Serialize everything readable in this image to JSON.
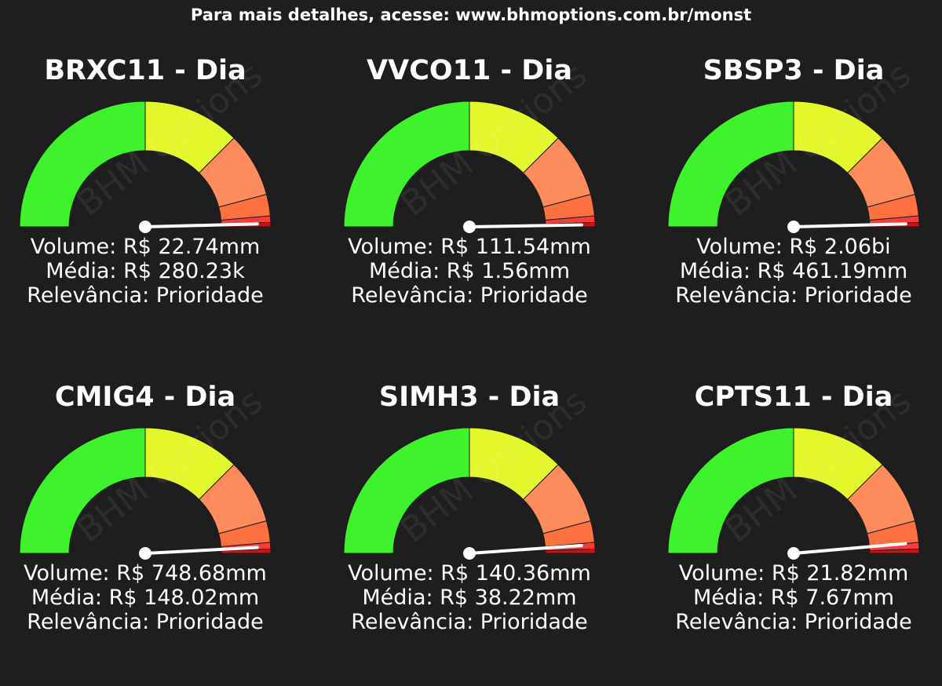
{
  "header": "Para mais detalhes, acesse: www.bhmoptions.com.br/monst",
  "watermark": "BHM Options",
  "colors": {
    "background": "#1e1e1e",
    "zones": [
      "#3ef22c",
      "#e4f72b",
      "#fd8c5c",
      "#fd7040",
      "#f93d3d",
      "#d40f0f"
    ],
    "needle": "#ffffff"
  },
  "chart_data": [
    {
      "type": "gauge",
      "title": "BRXC11 - Dia",
      "labels": {
        "volume": "Volume: R$ 22.74mm",
        "media": "Média: R$ 280.23k",
        "relevancia": "Relevância: Prioridade"
      },
      "volume": 22.74,
      "volume_unit": "mm",
      "media": 0.28023,
      "media_unit": "mm",
      "relevancia": "Prioridade",
      "zone_boundaries_deg": [
        0,
        90,
        135,
        165,
        175,
        178,
        180
      ],
      "needle_angle_deg": 178.5
    },
    {
      "type": "gauge",
      "title": "VVCO11 - Dia",
      "labels": {
        "volume": "Volume: R$ 111.54mm",
        "media": "Média: R$ 1.56mm",
        "relevancia": "Relevância: Prioridade"
      },
      "volume": 111.54,
      "volume_unit": "mm",
      "media": 1.56,
      "media_unit": "mm",
      "relevancia": "Prioridade",
      "zone_boundaries_deg": [
        0,
        90,
        135,
        165,
        175,
        178,
        180
      ],
      "needle_angle_deg": 179
    },
    {
      "type": "gauge",
      "title": "SBSP3 - Dia",
      "labels": {
        "volume": "Volume: R$ 2.06bi",
        "media": "Média: R$ 461.19mm",
        "relevancia": "Relevância: Prioridade"
      },
      "volume": 2.06,
      "volume_unit": "bi",
      "media": 461.19,
      "media_unit": "mm",
      "relevancia": "Prioridade",
      "zone_boundaries_deg": [
        0,
        90,
        135,
        165,
        175,
        178,
        180
      ],
      "needle_angle_deg": 178.5
    },
    {
      "type": "gauge",
      "title": "CMIG4 - Dia",
      "labels": {
        "volume": "Volume: R$ 748.68mm",
        "media": "Média: R$ 148.02mm",
        "relevancia": "Relevância: Prioridade"
      },
      "volume": 748.68,
      "volume_unit": "mm",
      "media": 148.02,
      "media_unit": "mm",
      "relevancia": "Prioridade",
      "zone_boundaries_deg": [
        0,
        90,
        135,
        165,
        175,
        178,
        180
      ],
      "needle_angle_deg": 177
    },
    {
      "type": "gauge",
      "title": "SIMH3 - Dia",
      "labels": {
        "volume": "Volume: R$ 140.36mm",
        "media": "Média: R$ 38.22mm",
        "relevancia": "Relevância: Prioridade"
      },
      "volume": 140.36,
      "volume_unit": "mm",
      "media": 38.22,
      "media_unit": "mm",
      "relevancia": "Prioridade",
      "zone_boundaries_deg": [
        0,
        90,
        135,
        165,
        175,
        178,
        180
      ],
      "needle_angle_deg": 176
    },
    {
      "type": "gauge",
      "title": "CPTS11 - Dia",
      "labels": {
        "volume": "Volume: R$ 21.82mm",
        "media": "Média: R$ 7.67mm",
        "relevancia": "Relevância: Prioridade"
      },
      "volume": 21.82,
      "volume_unit": "mm",
      "media": 7.67,
      "media_unit": "mm",
      "relevancia": "Prioridade",
      "zone_boundaries_deg": [
        0,
        90,
        135,
        165,
        175,
        178,
        180
      ],
      "needle_angle_deg": 175
    }
  ]
}
